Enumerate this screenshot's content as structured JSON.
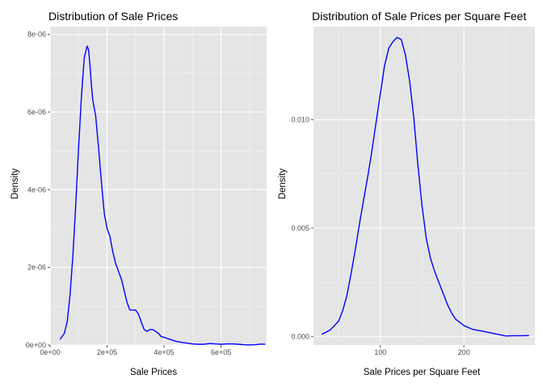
{
  "chart_data": [
    {
      "type": "line",
      "title": "Distribution of Sale Prices",
      "xlabel": "Sale Prices",
      "ylabel": "Density",
      "xlim": [
        0,
        760000
      ],
      "ylim": [
        0,
        8.2e-06
      ],
      "xticks": [
        0,
        200000,
        400000,
        600000
      ],
      "xtick_labels": [
        "0e+00",
        "2e+05",
        "4e+05",
        "6e+05"
      ],
      "yticks": [
        0,
        2e-06,
        4e-06,
        6e-06,
        8e-06
      ],
      "ytick_labels": [
        "0e+00",
        "2e-06",
        "4e-06",
        "6e-06",
        "8e-06"
      ],
      "grid": true,
      "line_color": "#0000ff",
      "panel_background": "#e5e5e5",
      "series": [
        {
          "x": [
            35000,
            50000,
            60000,
            70000,
            80000,
            90000,
            100000,
            110000,
            120000,
            130000,
            135000,
            140000,
            145000,
            150000,
            160000,
            170000,
            180000,
            190000,
            200000,
            210000,
            215000,
            220000,
            230000,
            240000,
            250000,
            260000,
            270000,
            280000,
            290000,
            300000,
            310000,
            320000,
            330000,
            340000,
            350000,
            360000,
            370000,
            380000,
            390000,
            400000,
            420000,
            440000,
            460000,
            480000,
            500000,
            520000,
            540000,
            560000,
            580000,
            600000,
            620000,
            640000,
            660000,
            680000,
            700000,
            720000,
            740000,
            755000
          ],
          "y": [
            1.5e-07,
            3e-07,
            6e-07,
            1.3e-06,
            2.3e-06,
            3.6e-06,
            5.1e-06,
            6.4e-06,
            7.4e-06,
            7.7e-06,
            7.6e-06,
            7.2e-06,
            6.7e-06,
            6.3e-06,
            5.9e-06,
            5.1e-06,
            4.2e-06,
            3.4e-06,
            3e-06,
            2.8e-06,
            2.6e-06,
            2.4e-06,
            2.1e-06,
            1.9e-06,
            1.7e-06,
            1.4e-06,
            1.1e-06,
            9e-07,
            9e-07,
            9e-07,
            8e-07,
            6e-07,
            4e-07,
            3.5e-07,
            4e-07,
            4e-07,
            3.5e-07,
            3e-07,
            2.2e-07,
            2e-07,
            1.5e-07,
            1e-07,
            7e-08,
            5e-08,
            3e-08,
            2e-08,
            2e-08,
            4e-08,
            3e-08,
            2e-08,
            3e-08,
            3e-08,
            2e-08,
            8e-09,
            5e-09,
            8e-09,
            2.5e-08,
            2e-08
          ]
        }
      ]
    },
    {
      "type": "line",
      "title": "Distribution of Sale Prices per Square Feet",
      "xlabel": "Sale Prices per Square Feet",
      "ylabel": "Density",
      "xlim": [
        20,
        285
      ],
      "ylim": [
        -0.0004,
        0.0143
      ],
      "xticks": [
        100,
        200
      ],
      "xtick_labels": [
        "100",
        "200"
      ],
      "yticks": [
        0,
        0.005,
        0.01
      ],
      "ytick_labels": [
        "0.000",
        "0.005",
        "0.010"
      ],
      "grid": true,
      "line_color": "#0000ff",
      "panel_background": "#e5e5e5",
      "series": [
        {
          "x": [
            30,
            40,
            50,
            55,
            60,
            65,
            70,
            75,
            80,
            85,
            90,
            95,
            100,
            105,
            110,
            115,
            120,
            125,
            130,
            135,
            140,
            145,
            150,
            155,
            160,
            165,
            170,
            175,
            180,
            185,
            190,
            200,
            210,
            220,
            230,
            240,
            250,
            260,
            270,
            278
          ],
          "y": [
            0.0001,
            0.0003,
            0.0007,
            0.0012,
            0.0019,
            0.0029,
            0.004,
            0.0052,
            0.0063,
            0.0074,
            0.0086,
            0.0099,
            0.0112,
            0.0125,
            0.0133,
            0.0136,
            0.0138,
            0.0137,
            0.013,
            0.0118,
            0.0101,
            0.0079,
            0.006,
            0.0045,
            0.0036,
            0.003,
            0.0025,
            0.002,
            0.0015,
            0.0011,
            0.0008,
            0.0005,
            0.00033,
            0.00026,
            0.00018,
            0.0001,
            2e-05,
            3e-05,
            3e-05,
            4e-05
          ]
        }
      ]
    }
  ]
}
